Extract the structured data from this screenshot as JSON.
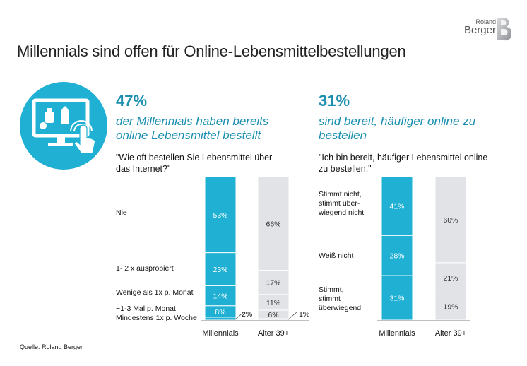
{
  "title": "Millennials sind offen für Online-Lebensmittelbestellungen",
  "logo": {
    "line1": "Roland",
    "line2": "Berger"
  },
  "left_panel": {
    "headline_value": "47%",
    "headline_text": "der Millennials haben bereits online Lebensmittel bestellt",
    "question": "\"Wie oft bestellen Sie Lebensmittel über das Internet?\""
  },
  "right_panel": {
    "headline_value": "31%",
    "headline_text": "sind bereit, häufiger online zu bestellen",
    "question": "\"Ich bin bereit, häufiger Lebensmittel online zu bestellen.\""
  },
  "source": "Quelle: Roland Berger",
  "colors": {
    "millennials": "#1fb0d3",
    "alter": "#e2e3e6",
    "accent": "#1a8fb0",
    "icon_bg": "#1fb0d3"
  },
  "icon": "online-shopping-screen-icon",
  "chart_data": [
    {
      "type": "bar",
      "stacked": true,
      "categories": [
        "Millennials",
        "Alter 39+"
      ],
      "series": [
        {
          "name": "Mindestens 1x p. Woche",
          "values": [
            2,
            1
          ]
        },
        {
          "name": "~1-3 Mal p. Monat",
          "values": [
            8,
            6
          ]
        },
        {
          "name": "Wenige als 1x p. Monat",
          "values": [
            14,
            11
          ]
        },
        {
          "name": "1- 2 x ausprobiert",
          "values": [
            23,
            17
          ]
        },
        {
          "name": "Nie",
          "values": [
            53,
            66
          ]
        }
      ],
      "labels": [
        {
          "millennials": "2%",
          "alter": "1%"
        },
        {
          "millennials": "8%",
          "alter": "6%"
        },
        {
          "millennials": "14%",
          "alter": "11%"
        },
        {
          "millennials": "23%",
          "alter": "17%"
        },
        {
          "millennials": "53%",
          "alter": "66%"
        }
      ],
      "unit": "%"
    },
    {
      "type": "bar",
      "stacked": true,
      "categories": [
        "Millennials",
        "Alter 39+"
      ],
      "series": [
        {
          "name": "Stimmt, stimmt überwiegend",
          "values": [
            31,
            19
          ]
        },
        {
          "name": "Weiß nicht",
          "values": [
            28,
            21
          ]
        },
        {
          "name": "Stimmt nicht, stimmt überwiegend nicht",
          "values": [
            41,
            60
          ]
        }
      ],
      "labels": [
        {
          "millennials": "31%",
          "alter": "19%"
        },
        {
          "millennials": "28%",
          "alter": "21%"
        },
        {
          "millennials": "41%",
          "alter": "60%"
        }
      ],
      "unit": "%"
    }
  ],
  "left_row_labels": {
    "nie": "Nie",
    "ausprobiert": "1- 2 x ausprobiert",
    "wenige": "Wenige als 1x p. Monat",
    "monat": "~1-3 Mal p. Monat",
    "woche": "Mindestens 1x p. Woche"
  },
  "right_row_labels": {
    "stimmt_nicht_1": "Stimmt nicht,",
    "stimmt_nicht_2": "stimmt über-",
    "stimmt_nicht_3": "wiegend nicht",
    "weiss": "Weiß nicht",
    "stimmt_1": "Stimmt,",
    "stimmt_2": "stimmt",
    "stimmt_3": "überwiegend"
  }
}
